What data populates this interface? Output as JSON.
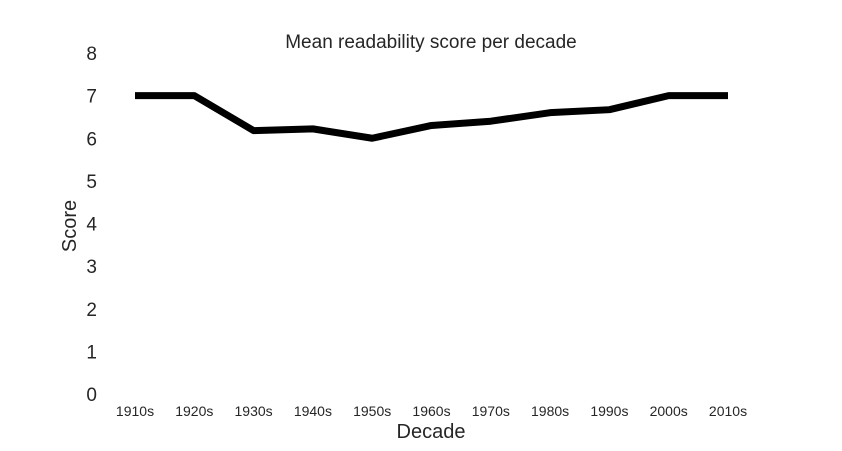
{
  "chart_data": {
    "type": "line",
    "title": "Mean readability score per decade",
    "xlabel": "Decade",
    "ylabel": "Score",
    "categories": [
      "1910s",
      "1920s",
      "1930s",
      "1940s",
      "1950s",
      "1960s",
      "1970s",
      "1980s",
      "1990s",
      "2000s",
      "2010s"
    ],
    "series": [
      {
        "values": [
          7.0,
          7.0,
          6.18,
          6.22,
          6.0,
          6.3,
          6.4,
          6.6,
          6.67,
          7.0,
          7.0
        ],
        "color": "#000000"
      }
    ],
    "ylim": [
      0,
      8
    ],
    "yticks": [
      0,
      1,
      2,
      3,
      4,
      5,
      6,
      7,
      8
    ],
    "grid": false,
    "legend": "none"
  }
}
